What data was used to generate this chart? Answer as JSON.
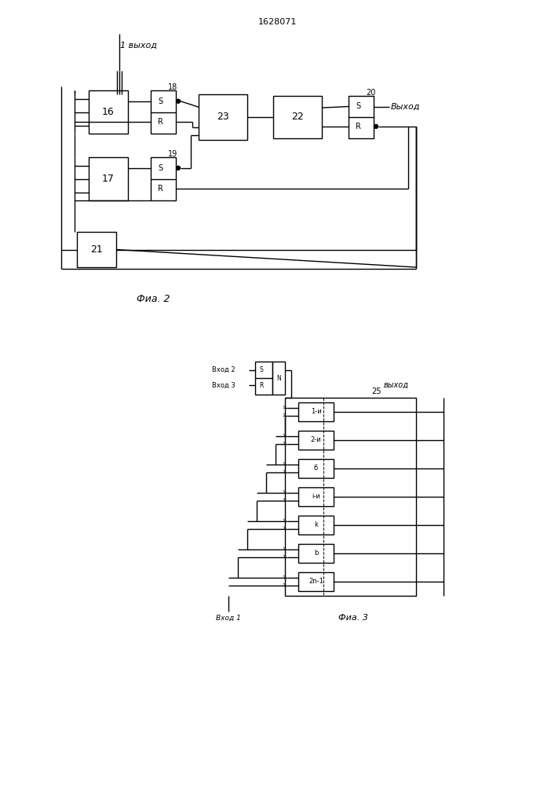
{
  "title": "1628071",
  "fig2_caption": "Фиа. 2",
  "fig3_caption": "Фиа. 3",
  "fig2_input_label": "1 выход",
  "fig2_output_label": "Выход",
  "fig3_input1": "Вход 2",
  "fig3_input2": "Вход 3",
  "fig3_input_bot": "Вход 1",
  "fig3_output": "выход",
  "fig3_block_N": "N",
  "fig3_block_25": "25",
  "fig3_cells": [
    "1-и",
    "2-и",
    "б",
    "i-и",
    "k",
    "b",
    "2n-1"
  ],
  "background": "#ffffff"
}
